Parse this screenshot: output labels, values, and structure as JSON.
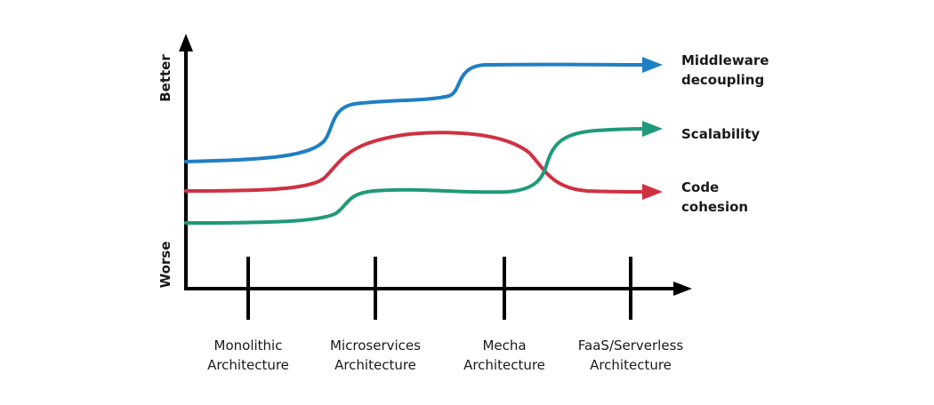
{
  "axes": {
    "y_top_label": "Better",
    "y_bottom_label": "Worse"
  },
  "categories": [
    {
      "line1": "Monolithic",
      "line2": "Architecture"
    },
    {
      "line1": "Microservices",
      "line2": "Architecture"
    },
    {
      "line1": "Mecha",
      "line2": "Architecture"
    },
    {
      "line1": "FaaS/Serverless",
      "line2": "Architecture"
    }
  ],
  "series": [
    {
      "line1": "Middleware",
      "line2": "decoupling",
      "color": "#1f7fc4"
    },
    {
      "line1": "Scalability",
      "line2": "",
      "color": "#1f9a7a"
    },
    {
      "line1": "Code",
      "line2": "cohesion",
      "color": "#cf3141"
    }
  ]
}
